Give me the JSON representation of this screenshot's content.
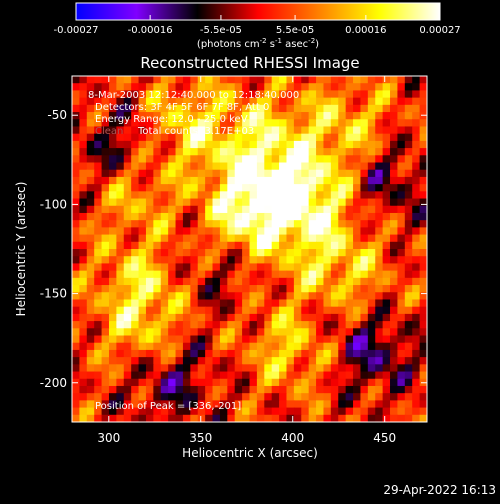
{
  "chart_data": {
    "type": "heatmap",
    "title": "Reconstructed RHESSI Image",
    "xlabel": "Heliocentric X (arcsec)",
    "ylabel": "Heliocentric Y (arcsec)",
    "xlim": [
      280,
      473
    ],
    "ylim": [
      -222,
      -28
    ],
    "x_ticks": [
      300,
      350,
      400,
      450
    ],
    "y_ticks": [
      -50,
      -100,
      -150,
      -200
    ],
    "colorbar": {
      "min": -0.00027,
      "max": 0.00027,
      "tick_values": [
        -0.00027,
        -0.00016,
        -5.5e-05,
        5.5e-05,
        0.00016,
        0.00027
      ],
      "tick_labels": [
        "-0.00027",
        "-0.00016",
        "-5.5e-05",
        "5.5e-05",
        "0.00016",
        "0.00027"
      ],
      "unit_label": "(photons cm",
      "unit_exp1": "-2",
      "unit_mid": " s",
      "unit_exp2": "-1",
      "unit_end": " asec",
      "unit_exp3": "-2",
      "unit_close": ")",
      "colormap": [
        "#0000ff",
        "#8000ff",
        "#000000",
        "#ff0000",
        "#ff8000",
        "#ffff00",
        "#ffffff"
      ]
    },
    "info_lines": [
      "8-Mar-2003 12:12:40.000 to 12:18:40.000",
      "Detectors: 3F 4F 5F 6F 7F 8F, Att 0",
      "Energy Range: 12.0 - 25.0 keV",
      "Total counts: 3.17E+03"
    ],
    "info_hidden_word": "Clean",
    "peak_label": "Position of Peak = [336,-201]",
    "peak_position": [
      336,
      -201
    ],
    "grid": false
  },
  "footer": {
    "timestamp": "29-Apr-2022 16:13"
  }
}
